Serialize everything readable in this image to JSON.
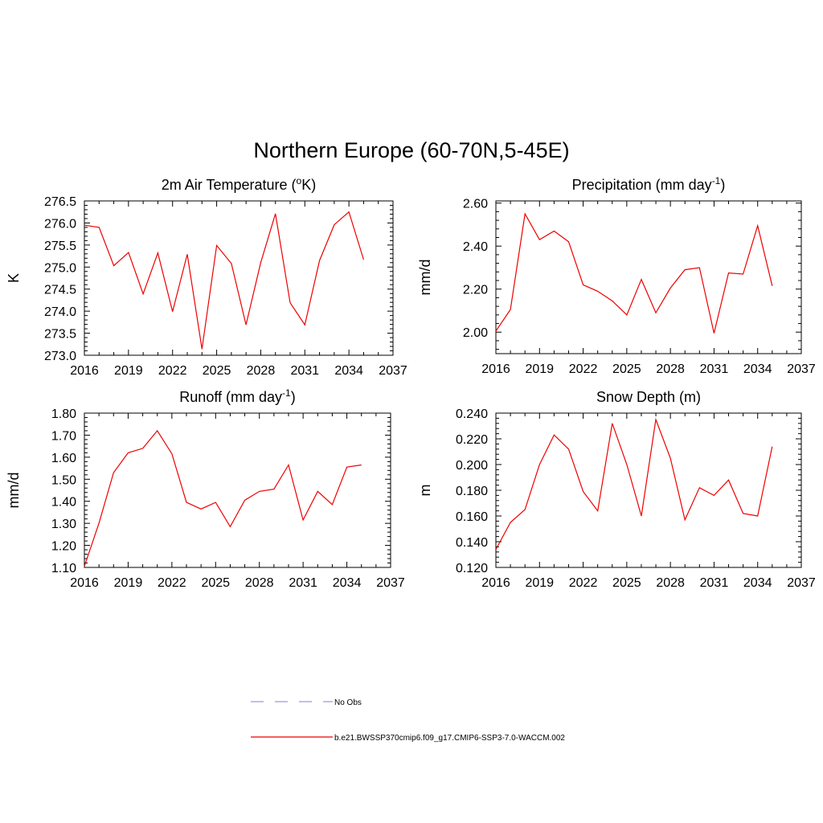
{
  "title": "Northern Europe (60-70N,5-45E)",
  "colors": {
    "series": "#ee0000",
    "obs": "#9999dd",
    "axis": "#000000"
  },
  "legend": {
    "entries": [
      {
        "label": "No Obs",
        "style": "dashed",
        "color": "#9999dd"
      },
      {
        "label": "b.e21.BWSSP370cmip6.f09_g17.CMIP6-SSP3-7.0-WACCM.002",
        "style": "solid",
        "color": "#ee0000"
      }
    ]
  },
  "chart_data": [
    {
      "type": "line",
      "title": "2m Air Temperature (",
      "title_sup": "o",
      "title_end": "K)",
      "ylabel": "K",
      "xlim": [
        2016,
        2037
      ],
      "ylim": [
        273.0,
        276.5
      ],
      "xticks": [
        "2016",
        "2019",
        "2022",
        "2025",
        "2028",
        "2031",
        "2034",
        "2037"
      ],
      "yticks": [
        "273.0",
        "273.5",
        "274.0",
        "274.5",
        "275.0",
        "275.5",
        "276.0",
        "276.5"
      ],
      "x": [
        2016,
        2017,
        2018,
        2019,
        2020,
        2021,
        2022,
        2023,
        2024,
        2025,
        2026,
        2027,
        2028,
        2029,
        2030,
        2031,
        2032,
        2033,
        2034,
        2035
      ],
      "values": [
        275.95,
        275.9,
        275.03,
        275.33,
        274.39,
        275.32,
        273.99,
        275.29,
        273.14,
        275.49,
        275.08,
        273.69,
        275.1,
        276.21,
        274.19,
        273.69,
        275.15,
        275.96,
        276.25,
        275.17
      ]
    },
    {
      "type": "line",
      "title": "Precipitation (mm day",
      "title_sup": "-1",
      "title_end": ")",
      "ylabel": "mm/d",
      "xlim": [
        2016,
        2037
      ],
      "ylim": [
        1.9,
        2.61
      ],
      "xticks": [
        "2016",
        "2019",
        "2022",
        "2025",
        "2028",
        "2031",
        "2034",
        "2037"
      ],
      "yticks": [
        "2.00",
        "2.20",
        "2.40",
        "2.60"
      ],
      "x": [
        2016,
        2017,
        2018,
        2019,
        2020,
        2021,
        2022,
        2023,
        2024,
        2025,
        2026,
        2027,
        2028,
        2029,
        2030,
        2031,
        2032,
        2033,
        2034,
        2035
      ],
      "values": [
        2.005,
        2.105,
        2.55,
        2.43,
        2.47,
        2.42,
        2.22,
        2.19,
        2.145,
        2.08,
        2.245,
        2.09,
        2.205,
        2.29,
        2.3,
        1.995,
        2.275,
        2.27,
        2.495,
        2.215
      ]
    },
    {
      "type": "line",
      "title": "Runoff (mm day",
      "title_sup": "-1",
      "title_end": ")",
      "ylabel": "mm/d",
      "xlim": [
        2016,
        2037
      ],
      "ylim": [
        1.1,
        1.8
      ],
      "xticks": [
        "2016",
        "2019",
        "2022",
        "2025",
        "2028",
        "2031",
        "2034",
        "2037"
      ],
      "yticks": [
        "1.10",
        "1.20",
        "1.30",
        "1.40",
        "1.50",
        "1.60",
        "1.70",
        "1.80"
      ],
      "x": [
        2016,
        2017,
        2018,
        2019,
        2020,
        2021,
        2022,
        2023,
        2024,
        2025,
        2026,
        2027,
        2028,
        2029,
        2030,
        2031,
        2032,
        2033,
        2034,
        2035
      ],
      "values": [
        1.105,
        1.3,
        1.53,
        1.62,
        1.64,
        1.72,
        1.615,
        1.395,
        1.365,
        1.395,
        1.285,
        1.405,
        1.445,
        1.455,
        1.565,
        1.315,
        1.445,
        1.385,
        1.555,
        1.565
      ]
    },
    {
      "type": "line",
      "title": "Snow Depth (m)",
      "title_sup": "",
      "title_end": "",
      "ylabel": "m",
      "xlim": [
        2016,
        2037
      ],
      "ylim": [
        0.12,
        0.24
      ],
      "xticks": [
        "2016",
        "2019",
        "2022",
        "2025",
        "2028",
        "2031",
        "2034",
        "2037"
      ],
      "yticks": [
        "0.120",
        "0.140",
        "0.160",
        "0.180",
        "0.200",
        "0.220",
        "0.240"
      ],
      "x": [
        2016,
        2017,
        2018,
        2019,
        2020,
        2021,
        2022,
        2023,
        2024,
        2025,
        2026,
        2027,
        2028,
        2029,
        2030,
        2031,
        2032,
        2033,
        2034,
        2035
      ],
      "values": [
        0.134,
        0.155,
        0.165,
        0.2,
        0.223,
        0.212,
        0.179,
        0.164,
        0.232,
        0.2,
        0.16,
        0.235,
        0.205,
        0.157,
        0.182,
        0.176,
        0.188,
        0.162,
        0.16,
        0.214
      ]
    }
  ]
}
